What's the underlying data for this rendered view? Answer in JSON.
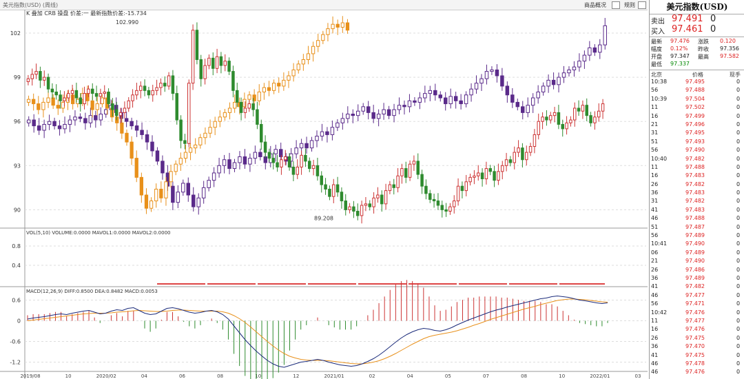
{
  "window": {
    "title": "美元指数(USD) (周线)",
    "btn_product_info": "商品概况",
    "btn_rules": "规则"
  },
  "chart_data": [
    {
      "type": "candlestick",
      "name": "main-price-chart",
      "legend": "K 叠加 CRB 操盘 价差:一 最新指数价差:-15.734",
      "ylim": [
        88.8,
        103.5
      ],
      "yticks": [
        90,
        93,
        96,
        99,
        102
      ],
      "x_ticks": [
        "2019/08",
        "10",
        "2020/02",
        "04",
        "06",
        "08",
        "10",
        "12",
        "2021/01",
        "02",
        "04",
        "05",
        "07",
        "08",
        "10",
        "2022/01",
        "03"
      ],
      "annotations": [
        {
          "label": "102.990",
          "kind": "high"
        },
        {
          "label": "89.208",
          "kind": "low"
        }
      ],
      "series": [
        {
          "name": "美元指数 周线",
          "color_up": "#cc3333",
          "color_down": "#2e8b2e",
          "closes": [
            98.9,
            99.2,
            99.4,
            98.8,
            99.0,
            98.2,
            98.0,
            97.8,
            97.4,
            97.6,
            97.9,
            98.1,
            97.6,
            97.2,
            97.9,
            98.2,
            97.9,
            97.7,
            97.9,
            98.0,
            97.2,
            96.8,
            96.4,
            96.6,
            96.9,
            97.4,
            97.8,
            98.1,
            98.4,
            98.1,
            97.8,
            98.1,
            98.3,
            98.6,
            98.4,
            99.1,
            97.9,
            96.1,
            94.7,
            94.5,
            98.6,
            102.2,
            100.2,
            98.9,
            99.8,
            100.3,
            99.6,
            100.4,
            99.8,
            100.1,
            99.4,
            98.1,
            97.3,
            96.6,
            96.9,
            97.2,
            96.8,
            95.8,
            94.6,
            93.9,
            93.5,
            93.2,
            92.9,
            93.4,
            93.6,
            92.9,
            92.4,
            92.9,
            93.7,
            93.3,
            92.8,
            93.0,
            92.3,
            91.7,
            91.4,
            90.9,
            91.7,
            91.2,
            90.6,
            90.0,
            90.2,
            89.9,
            89.6,
            90.3,
            90.4,
            90.2,
            90.8,
            91.0,
            90.4,
            91.3,
            91.7,
            91.5,
            92.3,
            92.8,
            92.2,
            93.1,
            93.3,
            92.4,
            91.6,
            91.1,
            90.7,
            90.6,
            90.3,
            90.0,
            89.9,
            90.2,
            90.6,
            91.6,
            91.3,
            91.9,
            92.2,
            92.3,
            92.5,
            92.1,
            92.8,
            92.6,
            92.0,
            92.6,
            93.0,
            93.4,
            93.2,
            93.9,
            94.2,
            93.4,
            93.9,
            94.3,
            95.1,
            96.0,
            96.3,
            96.1,
            96.4,
            96.6,
            95.8,
            95.5,
            95.9,
            96.1,
            96.9,
            96.7,
            97.1,
            96.4,
            95.9,
            96.3,
            96.7,
            97.2
          ],
          "opens_note": "each weekly open equals the prior weekly close"
        },
        {
          "name": "CRB 叠加",
          "color_up": "#5a2a8a",
          "color_down": "#5a2a8a",
          "closes": [
            96.1,
            95.7,
            95.4,
            95.8,
            96.0,
            95.7,
            95.5,
            95.8,
            96.1,
            96.3,
            96.2,
            95.9,
            96.4,
            96.1,
            96.5,
            96.8,
            97.1,
            96.6,
            96.2,
            96.0,
            95.7,
            95.4,
            95.1,
            94.6,
            94.0,
            93.3,
            92.5,
            91.6,
            90.5,
            91.2,
            91.8,
            91.0,
            90.2,
            90.8,
            91.5,
            92.0,
            92.5,
            93.0,
            93.4,
            92.8,
            93.2,
            93.6,
            93.1,
            93.5,
            93.9,
            93.6,
            93.2,
            93.8,
            94.1,
            93.6,
            93.3,
            93.8,
            94.2,
            94.5,
            94.2,
            94.7,
            95.0,
            95.3,
            95.1,
            95.6,
            95.9,
            96.2,
            96.5,
            96.4,
            96.7,
            97.0,
            96.6,
            96.2,
            96.5,
            96.8,
            96.4,
            96.8,
            97.1,
            97.0,
            97.4,
            97.3,
            97.6,
            97.9,
            98.1,
            97.8,
            97.6,
            97.2,
            97.7,
            97.4,
            97.2,
            97.8,
            98.2,
            98.6,
            98.9,
            99.4,
            99.5,
            99.1,
            98.4,
            97.8,
            97.3,
            97.0,
            96.6,
            97.1,
            97.6,
            98.0,
            98.4,
            98.8,
            98.5,
            99.0,
            99.3,
            99.5,
            99.7,
            100.1,
            100.5,
            101.0,
            100.7,
            101.2,
            102.5
          ]
        },
        {
          "name": "操盘 叠加",
          "color": "#e8901a",
          "closes": [
            97.5,
            97.2,
            96.8,
            97.3,
            97.6,
            97.1,
            96.9,
            97.3,
            97.8,
            97.2,
            97.5,
            97.9,
            97.4,
            96.8,
            97.2,
            97.6,
            96.9,
            96.3,
            95.9,
            95.2,
            94.6,
            93.5,
            92.2,
            91.0,
            90.1,
            90.6,
            91.4,
            90.8,
            91.9,
            92.6,
            93.1,
            93.5,
            93.9,
            94.2,
            94.4,
            94.9,
            95.2,
            95.6,
            96.0,
            96.3,
            96.6,
            96.9,
            97.3,
            97.0,
            97.5,
            97.8,
            97.4,
            98.0,
            98.3,
            98.1,
            98.6,
            98.4,
            98.8,
            99.1,
            99.5,
            99.9,
            100.2,
            100.6,
            101.1,
            101.5,
            101.9,
            102.3,
            102.6,
            102.4,
            102.7,
            102.2
          ]
        }
      ]
    },
    {
      "type": "bar",
      "name": "volume-chart",
      "legend": "VOL(5,10) VOLUME:0.0000 MAVOL1:0.0000 MAVOL2:0.0000",
      "yticks": [
        "0.8",
        "0.4"
      ]
    },
    {
      "type": "line",
      "name": "macd-chart",
      "legend": "MACD(12,26,9) DIFF:0.8500 DEA:0.8482 MACD:0.0053",
      "ylim": [
        -1.45,
        0.75
      ],
      "yticks": [
        "0.6",
        "0",
        "-0.6",
        "-1.2"
      ],
      "series": [
        {
          "name": "DIFF",
          "color": "#1a2a7a",
          "values": [
            0.05,
            0.08,
            0.1,
            0.12,
            0.15,
            0.18,
            0.2,
            0.18,
            0.22,
            0.25,
            0.28,
            0.3,
            0.25,
            0.2,
            0.22,
            0.28,
            0.32,
            0.3,
            0.36,
            0.38,
            0.3,
            0.22,
            0.18,
            0.2,
            0.28,
            0.36,
            0.38,
            0.35,
            0.3,
            0.25,
            0.22,
            0.24,
            0.28,
            0.3,
            0.26,
            0.18,
            0.05,
            -0.15,
            -0.35,
            -0.55,
            -0.72,
            -0.88,
            -1.02,
            -1.15,
            -1.25,
            -1.32,
            -1.35,
            -1.3,
            -1.25,
            -1.2,
            -1.18,
            -1.15,
            -1.12,
            -1.15,
            -1.2,
            -1.24,
            -1.28,
            -1.3,
            -1.32,
            -1.3,
            -1.25,
            -1.18,
            -1.1,
            -1.0,
            -0.88,
            -0.75,
            -0.62,
            -0.5,
            -0.4,
            -0.32,
            -0.26,
            -0.22,
            -0.24,
            -0.28,
            -0.3,
            -0.26,
            -0.2,
            -0.12,
            -0.05,
            0.02,
            0.08,
            0.14,
            0.2,
            0.26,
            0.31,
            0.35,
            0.4,
            0.44,
            0.48,
            0.52,
            0.56,
            0.6,
            0.64,
            0.66,
            0.7,
            0.72,
            0.7,
            0.68,
            0.64,
            0.6,
            0.58,
            0.55,
            0.52,
            0.5,
            0.52
          ]
        },
        {
          "name": "DEA",
          "color": "#e8901a",
          "values": [
            0.0,
            0.02,
            0.04,
            0.06,
            0.08,
            0.1,
            0.12,
            0.14,
            0.16,
            0.18,
            0.2,
            0.21,
            0.22,
            0.22,
            0.22,
            0.23,
            0.25,
            0.26,
            0.27,
            0.29,
            0.3,
            0.29,
            0.28,
            0.27,
            0.27,
            0.28,
            0.3,
            0.31,
            0.31,
            0.3,
            0.29,
            0.28,
            0.28,
            0.28,
            0.28,
            0.26,
            0.22,
            0.15,
            0.06,
            -0.05,
            -0.18,
            -0.32,
            -0.46,
            -0.6,
            -0.73,
            -0.85,
            -0.95,
            -1.03,
            -1.08,
            -1.12,
            -1.14,
            -1.15,
            -1.15,
            -1.15,
            -1.16,
            -1.18,
            -1.2,
            -1.22,
            -1.24,
            -1.25,
            -1.25,
            -1.23,
            -1.2,
            -1.16,
            -1.1,
            -1.03,
            -0.95,
            -0.86,
            -0.77,
            -0.68,
            -0.6,
            -0.52,
            -0.46,
            -0.42,
            -0.39,
            -0.36,
            -0.33,
            -0.29,
            -0.24,
            -0.19,
            -0.13,
            -0.08,
            -0.02,
            0.04,
            0.09,
            0.14,
            0.19,
            0.24,
            0.29,
            0.34,
            0.38,
            0.42,
            0.47,
            0.51,
            0.55,
            0.59,
            0.61,
            0.63,
            0.63,
            0.62,
            0.61,
            0.59,
            0.57,
            0.55,
            0.54
          ]
        }
      ]
    }
  ],
  "quote_panel": {
    "title": "美元指数(USD)",
    "sell_label": "卖出",
    "sell_price": "97.491",
    "sell_vol": "0",
    "buy_label": "买入",
    "buy_price": "97.461",
    "buy_vol": "0",
    "stats": [
      {
        "l1": "最新",
        "v1": "97.476",
        "c1": "red",
        "l2": "涨跌",
        "v2": "0.120",
        "c2": "red"
      },
      {
        "l1": "幅度",
        "v1": "0.12%",
        "c1": "red",
        "l2": "昨收",
        "v2": "97.356",
        "c2": "dark"
      },
      {
        "l1": "开盘",
        "v1": "97.347",
        "c1": "dark",
        "l2": "最高",
        "v2": "97.582",
        "c2": "red"
      },
      {
        "l1": "最低",
        "v1": "97.337",
        "c1": "grn",
        "l2": "",
        "v2": "",
        "c2": "dark"
      }
    ],
    "ticks_header": {
      "time": "北京",
      "price": "价格",
      "vol": "现手"
    },
    "ticks": [
      {
        "t": "10:38",
        "p": "97.495",
        "v": "0"
      },
      {
        "t": "56",
        "p": "97.488",
        "v": "0"
      },
      {
        "t": "10:39",
        "p": "97.504",
        "v": "0"
      },
      {
        "t": "11",
        "p": "97.502",
        "v": "0"
      },
      {
        "t": "16",
        "p": "97.499",
        "v": "0"
      },
      {
        "t": "21",
        "p": "97.496",
        "v": "0"
      },
      {
        "t": "31",
        "p": "97.495",
        "v": "0"
      },
      {
        "t": "51",
        "p": "97.493",
        "v": "0"
      },
      {
        "t": "56",
        "p": "97.490",
        "v": "0"
      },
      {
        "t": "10:40",
        "p": "97.482",
        "v": "0"
      },
      {
        "t": "11",
        "p": "97.488",
        "v": "0"
      },
      {
        "t": "16",
        "p": "97.483",
        "v": "0"
      },
      {
        "t": "26",
        "p": "97.482",
        "v": "0"
      },
      {
        "t": "36",
        "p": "97.483",
        "v": "0"
      },
      {
        "t": "31",
        "p": "97.482",
        "v": "0"
      },
      {
        "t": "41",
        "p": "97.483",
        "v": "0"
      },
      {
        "t": "46",
        "p": "97.488",
        "v": "0"
      },
      {
        "t": "51",
        "p": "97.487",
        "v": "0"
      },
      {
        "t": "56",
        "p": "97.489",
        "v": "0"
      },
      {
        "t": "10:41",
        "p": "97.490",
        "v": "0"
      },
      {
        "t": "06",
        "p": "97.489",
        "v": "0"
      },
      {
        "t": "21",
        "p": "97.490",
        "v": "0"
      },
      {
        "t": "26",
        "p": "97.486",
        "v": "0"
      },
      {
        "t": "36",
        "p": "97.489",
        "v": "0"
      },
      {
        "t": "41",
        "p": "97.482",
        "v": "0"
      },
      {
        "t": "46",
        "p": "97.477",
        "v": "0"
      },
      {
        "t": "56",
        "p": "97.471",
        "v": "0"
      },
      {
        "t": "10:42",
        "p": "97.476",
        "v": "0"
      },
      {
        "t": "11",
        "p": "97.477",
        "v": "0"
      },
      {
        "t": "16",
        "p": "97.476",
        "v": "0"
      },
      {
        "t": "26",
        "p": "97.475",
        "v": "0"
      },
      {
        "t": "36",
        "p": "97.470",
        "v": "0"
      },
      {
        "t": "41",
        "p": "97.475",
        "v": "0"
      },
      {
        "t": "46",
        "p": "97.478",
        "v": "0"
      },
      {
        "t": "46",
        "p": "97.476",
        "v": "0"
      }
    ]
  }
}
